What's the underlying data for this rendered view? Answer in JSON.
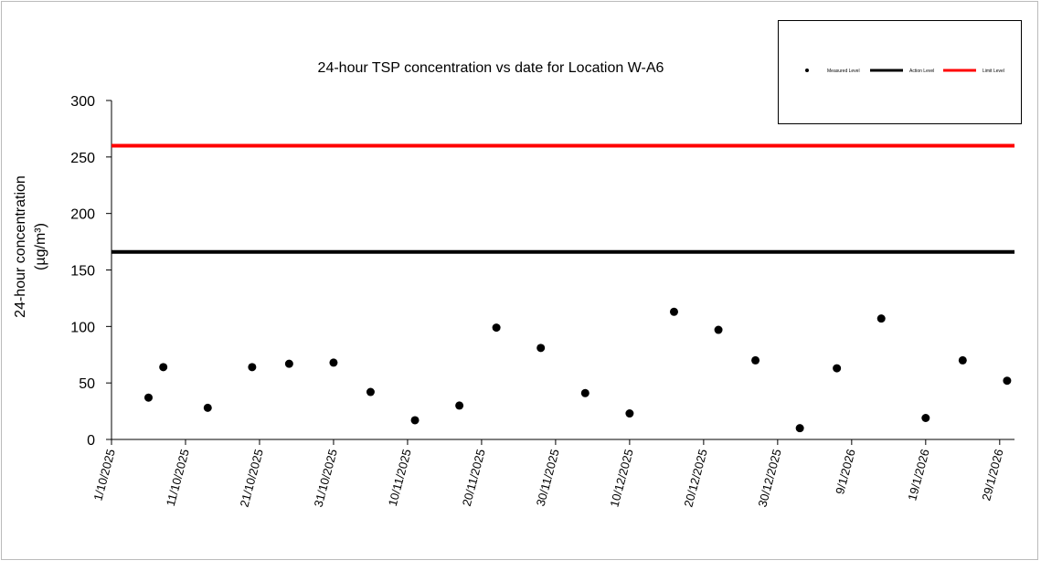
{
  "chart_data": {
    "type": "scatter",
    "title": "24-hour TSP concentration vs date for Location W-A6",
    "y_label": [
      "24-hour concentration",
      "(µg/m³)"
    ],
    "series": [
      {
        "name": "Measured Level",
        "type": "scatter",
        "color": "#000000",
        "x": [
          "6/10/2025",
          "8/10/2025",
          "14/10/2025",
          "20/10/2025",
          "25/10/2025",
          "31/10/2025",
          "5/11/2025",
          "11/11/2025",
          "17/11/2025",
          "22/11/2025",
          "28/11/2025",
          "4/12/2025",
          "10/12/2025",
          "16/12/2025",
          "22/12/2025",
          "27/12/2025",
          "2/1/2026",
          "7/1/2026",
          "13/1/2026",
          "19/1/2026",
          "24/1/2026",
          "30/1/2026"
        ],
        "values": [
          37,
          64,
          28,
          64,
          67,
          68,
          42,
          17,
          30,
          99,
          81,
          41,
          23,
          113,
          97,
          70,
          10,
          63,
          107,
          19,
          70,
          52
        ]
      },
      {
        "name": "Action Level",
        "type": "line",
        "color": "#000000",
        "x": [
          "1/10/2025",
          "31/1/2026"
        ],
        "values": [
          166,
          166
        ]
      },
      {
        "name": "Limit Level",
        "type": "line",
        "color": "#ff0000",
        "x": [
          "1/10/2025",
          "31/1/2026"
        ],
        "values": [
          260,
          260
        ]
      }
    ],
    "xlim": [
      "1/10/2025",
      "31/1/2026"
    ],
    "xticks": [
      "1/10/2025",
      "11/10/2025",
      "21/10/2025",
      "31/10/2025",
      "10/11/2025",
      "20/11/2025",
      "30/11/2025",
      "10/12/2025",
      "20/12/2025",
      "30/12/2025",
      "9/1/2026",
      "19/1/2026",
      "29/1/2026"
    ],
    "ylim": [
      0,
      300
    ],
    "yticks": [
      0,
      50,
      100,
      150,
      200,
      250,
      300
    ],
    "legend": "top-right"
  }
}
